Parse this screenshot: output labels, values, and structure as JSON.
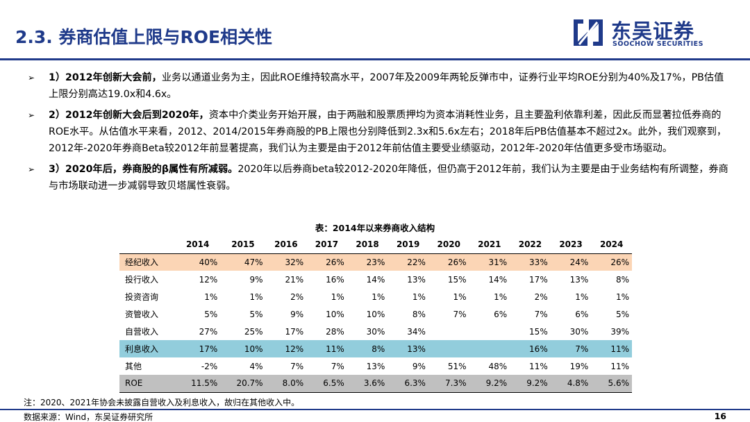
{
  "header": {
    "title": "2.3. 券商估值上限与ROE相关性",
    "logo_cn": "东吴证券",
    "logo_en": "SOOCHOW SECURITIES",
    "brand_color": "#1f3a8a"
  },
  "bullets": [
    {
      "bold": "1）2012年创新大会前，",
      "text": "业务以通道业务为主，因此ROE维持较高水平，2007年及2009年两轮反弹市中，证券行业平均ROE分别为40%及17%，PB估值上限分别高达19.0x和4.6x。"
    },
    {
      "bold": "2）2012年创新大会后到2020年，",
      "text": "资本中介类业务开始开展，由于两融和股票质押均为资本消耗性业务，且主要盈利依靠利差，因此反而显著拉低券商的ROE水平。从估值水平来看，2012、2014/2015年券商股的PB上限也分别降低到2.3x和5.6x左右；2018年后PB估值基本不超过2x。此外，我们观察到，2012年-2020年券商Beta较2012年前显著提高，我们认为主要是由于2012年前估值主要受业绩驱动，2012年-2020年估值更多受市场驱动。"
    },
    {
      "bold": "3）2020年后，券商股的β属性有所减弱。",
      "text": "2020年以后券商beta较2012-2020年降低，但仍高于2012年前，我们认为主要是由于业务结构有所调整，券商与市场联动进一步减弱导致贝塔属性衰弱。"
    }
  ],
  "table": {
    "title": "表：2014年以来券商收入结构",
    "years": [
      "2014",
      "2015",
      "2016",
      "2017",
      "2018",
      "2019",
      "2020",
      "2021",
      "2022",
      "2023",
      "2024"
    ],
    "rows": [
      {
        "label": "经纪收入",
        "values": [
          "40%",
          "47%",
          "32%",
          "26%",
          "23%",
          "22%",
          "26%",
          "31%",
          "33%",
          "24%",
          "26%"
        ]
      },
      {
        "label": "投行收入",
        "values": [
          "12%",
          "9%",
          "21%",
          "16%",
          "14%",
          "13%",
          "15%",
          "14%",
          "17%",
          "13%",
          "8%"
        ]
      },
      {
        "label": "投资咨询",
        "values": [
          "1%",
          "1%",
          "2%",
          "1%",
          "1%",
          "1%",
          "1%",
          "1%",
          "2%",
          "1%",
          "1%"
        ]
      },
      {
        "label": "资管收入",
        "values": [
          "5%",
          "5%",
          "9%",
          "10%",
          "10%",
          "8%",
          "7%",
          "6%",
          "7%",
          "6%",
          "5%"
        ]
      },
      {
        "label": "自营收入",
        "values": [
          "27%",
          "25%",
          "17%",
          "28%",
          "30%",
          "34%",
          "",
          "",
          "15%",
          "30%",
          "39%"
        ]
      },
      {
        "label": "利息收入",
        "values": [
          "17%",
          "10%",
          "12%",
          "11%",
          "8%",
          "13%",
          "",
          "",
          "16%",
          "7%",
          "11%"
        ]
      },
      {
        "label": "其他",
        "values": [
          "-2%",
          "4%",
          "7%",
          "7%",
          "13%",
          "9%",
          "51%",
          "48%",
          "11%",
          "19%",
          "11%"
        ]
      },
      {
        "label": "ROE",
        "values": [
          "11.5%",
          "20.7%",
          "8.0%",
          "6.5%",
          "3.6%",
          "6.3%",
          "7.3%",
          "9.2%",
          "9.2%",
          "4.8%",
          "5.6%"
        ]
      }
    ]
  },
  "footer": {
    "note": "注：2020、2021年协会未披露自营收入及利息收入，故归在其他收入中。",
    "source": "数据来源：Wind，东吴证券研究所",
    "page_number": "16"
  }
}
